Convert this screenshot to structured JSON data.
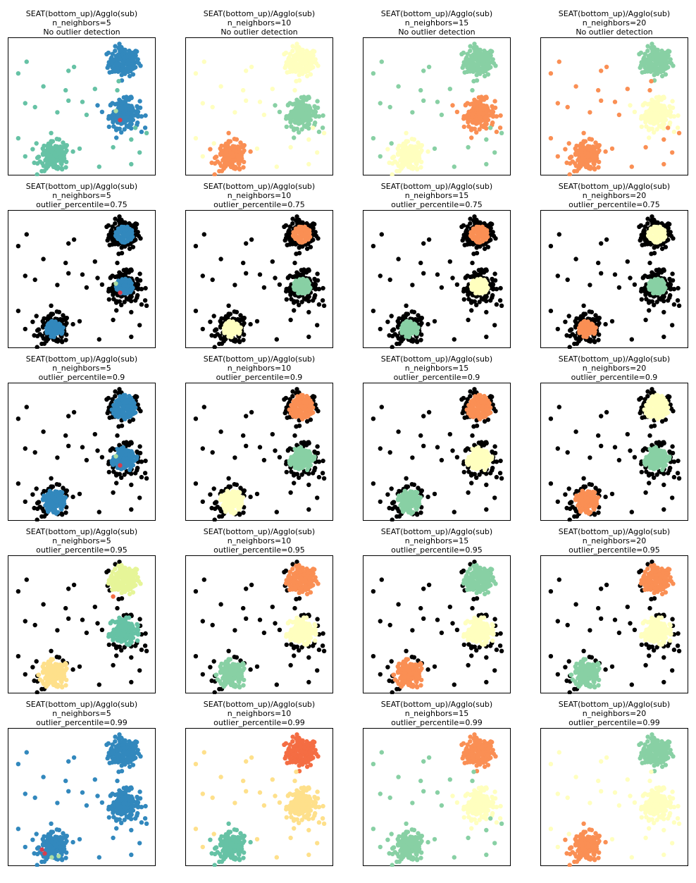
{
  "chart_data": {
    "type": "scatter",
    "grid": false,
    "axes_ticks": "hidden",
    "title_line1": "SEAT(bottom_up)/Agglo(sub)",
    "n_neighbors_labels": [
      "n_neighbors=5",
      "n_neighbors=10",
      "n_neighbors=15",
      "n_neighbors=20"
    ],
    "row_labels": [
      "No outlier detection",
      "outlier_percentile=0.75",
      "outlier_percentile=0.9",
      "outlier_percentile=0.95",
      "outlier_percentile=0.99"
    ],
    "xlim": [
      0,
      10
    ],
    "ylim": [
      0,
      10
    ],
    "blobs": [
      {
        "center": [
          8.0,
          8.5
        ],
        "std": 0.55
      },
      {
        "center": [
          8.0,
          4.5
        ],
        "std": 0.55
      },
      {
        "center": [
          3.0,
          1.2
        ],
        "std": 0.55
      }
    ],
    "outlier_points": [
      [
        1.0,
        8.5
      ],
      [
        2.2,
        6.6
      ],
      [
        4.0,
        7.8
      ],
      [
        4.4,
        8.1
      ],
      [
        0.4,
        7.6
      ],
      [
        3.8,
        6.3
      ],
      [
        5.9,
        6.4
      ],
      [
        5.0,
        5.4
      ],
      [
        7.5,
        6.3
      ],
      [
        4.0,
        5.5
      ],
      [
        0.9,
        5.3
      ],
      [
        1.6,
        5.0
      ],
      [
        3.2,
        4.6
      ],
      [
        5.3,
        4.4
      ],
      [
        8.8,
        3.4
      ],
      [
        9.6,
        3.0
      ],
      [
        8.5,
        2.5
      ],
      [
        0.4,
        2.6
      ],
      [
        0.9,
        1.2
      ],
      [
        1.7,
        2.2
      ],
      [
        4.8,
        1.8
      ],
      [
        7.2,
        1.9
      ],
      [
        9.1,
        1.5
      ],
      [
        6.2,
        0.4
      ],
      [
        8.5,
        0.6
      ],
      [
        7.6,
        7.0
      ]
    ],
    "colors": {
      "black": "#000000",
      "blue": "#3288bd",
      "teal": "#66c2a5",
      "mint": "#88d0a4",
      "yellow": "#ffffbf",
      "orange": "#fa8f54",
      "red_orange": "#f46d43",
      "red": "#d53e4f",
      "lime": "#e6f598",
      "light_green": "#abdda4",
      "sand": "#fee08b"
    },
    "panels": [
      {
        "row": 0,
        "col": 0,
        "blob_colors": [
          "blue",
          "blue",
          "teal"
        ],
        "outlier_color": "teal"
      },
      {
        "row": 0,
        "col": 1,
        "blob_colors": [
          "yellow",
          "mint",
          "orange"
        ],
        "outlier_color": "yellow"
      },
      {
        "row": 0,
        "col": 2,
        "blob_colors": [
          "mint",
          "orange",
          "yellow"
        ],
        "outlier_color": "mint"
      },
      {
        "row": 0,
        "col": 3,
        "blob_colors": [
          "mint",
          "yellow",
          "orange"
        ],
        "outlier_color": "orange"
      },
      {
        "row": 1,
        "col": 0,
        "blob_colors": [
          "blue",
          "blue",
          "blue"
        ],
        "outlier_color": "black"
      },
      {
        "row": 1,
        "col": 1,
        "blob_colors": [
          "orange",
          "mint",
          "yellow"
        ],
        "outlier_color": "black"
      },
      {
        "row": 1,
        "col": 2,
        "blob_colors": [
          "orange",
          "yellow",
          "mint"
        ],
        "outlier_color": "black"
      },
      {
        "row": 1,
        "col": 3,
        "blob_colors": [
          "yellow",
          "mint",
          "orange"
        ],
        "outlier_color": "black"
      },
      {
        "row": 2,
        "col": 0,
        "blob_colors": [
          "blue",
          "blue",
          "blue"
        ],
        "outlier_color": "black"
      },
      {
        "row": 2,
        "col": 1,
        "blob_colors": [
          "orange",
          "mint",
          "yellow"
        ],
        "outlier_color": "black"
      },
      {
        "row": 2,
        "col": 2,
        "blob_colors": [
          "orange",
          "yellow",
          "mint"
        ],
        "outlier_color": "black"
      },
      {
        "row": 2,
        "col": 3,
        "blob_colors": [
          "yellow",
          "mint",
          "orange"
        ],
        "outlier_color": "black"
      },
      {
        "row": 3,
        "col": 0,
        "blob_colors": [
          "lime",
          "teal",
          "sand"
        ],
        "outlier_color": "black"
      },
      {
        "row": 3,
        "col": 1,
        "blob_colors": [
          "orange",
          "yellow",
          "mint"
        ],
        "outlier_color": "black"
      },
      {
        "row": 3,
        "col": 2,
        "blob_colors": [
          "mint",
          "yellow",
          "orange"
        ],
        "outlier_color": "black"
      },
      {
        "row": 3,
        "col": 3,
        "blob_colors": [
          "orange",
          "yellow",
          "mint"
        ],
        "outlier_color": "black"
      },
      {
        "row": 4,
        "col": 0,
        "blob_colors": [
          "blue",
          "blue",
          "blue"
        ],
        "outlier_color": "blue"
      },
      {
        "row": 4,
        "col": 1,
        "blob_colors": [
          "red_orange",
          "sand",
          "teal"
        ],
        "outlier_color": "sand"
      },
      {
        "row": 4,
        "col": 2,
        "blob_colors": [
          "orange",
          "yellow",
          "mint"
        ],
        "outlier_color": "mint"
      },
      {
        "row": 4,
        "col": 3,
        "blob_colors": [
          "mint",
          "yellow",
          "orange"
        ],
        "outlier_color": "yellow"
      }
    ]
  }
}
